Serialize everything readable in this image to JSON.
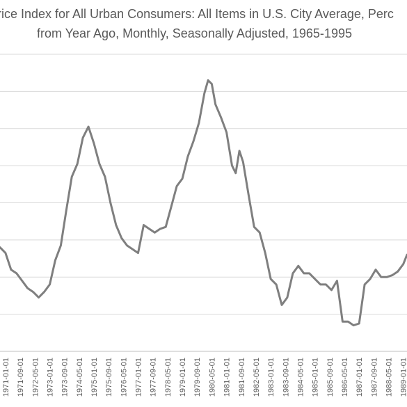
{
  "title": {
    "line1": "rice Index for All Urban Consumers: All Items in U.S. City Average, Perc",
    "line2": "from Year Ago, Monthly, Seasonally Adjusted, 1965-1995"
  },
  "chart_data": {
    "type": "line",
    "title": "rice Index for All Urban Consumers: All Items in U.S. City Average, Perc from Year Ago, Monthly, Seasonally Adjusted, 1965-1995",
    "xlabel": "",
    "ylabel": "",
    "grid": true,
    "line_color": "#7f7f7f",
    "x_tick_labels": [
      "1971-01-01",
      "1971-09-01",
      "1972-05-01",
      "1973-01-01",
      "1973-09-01",
      "1974-05-01",
      "1975-01-01",
      "1975-09-01",
      "1976-05-01",
      "1977-01-01",
      "1977-09-01",
      "1978-05-01",
      "1979-01-01",
      "1979-09-01",
      "1980-05-01",
      "1981-01-01",
      "1981-09-01",
      "1982-05-01",
      "1983-01-01",
      "1983-09-01",
      "1984-05-01",
      "1985-01-01",
      "1985-09-01",
      "1986-05-01",
      "1987-01-01",
      "1987-09-01",
      "1988-05-01",
      "1989-01-01"
    ],
    "x_range": [
      "1970-10-01",
      "1989-03-01"
    ],
    "ylim": [
      0,
      16
    ],
    "y_grid_step": 2,
    "series": [
      {
        "x": [
          "1970-10-01",
          "1971-01-01",
          "1971-04-01",
          "1971-07-01",
          "1971-10-01",
          "1972-01-01",
          "1972-04-01",
          "1972-07-01",
          "1972-10-01",
          "1973-01-01",
          "1973-04-01",
          "1973-07-01",
          "1973-10-01",
          "1974-01-01",
          "1974-04-01",
          "1974-07-01",
          "1974-10-01",
          "1975-01-01",
          "1975-04-01",
          "1975-07-01",
          "1975-10-01",
          "1976-01-01",
          "1976-04-01",
          "1976-07-01",
          "1976-10-01",
          "1977-01-01",
          "1977-04-01",
          "1977-07-01",
          "1977-10-01",
          "1978-01-01",
          "1978-04-01",
          "1978-07-01",
          "1978-10-01",
          "1979-01-01",
          "1979-04-01",
          "1979-07-01",
          "1979-10-01",
          "1980-01-01",
          "1980-03-01",
          "1980-05-01",
          "1980-07-01",
          "1980-10-01",
          "1981-01-01",
          "1981-04-01",
          "1981-06-01",
          "1981-08-01",
          "1981-10-01",
          "1982-01-01",
          "1982-04-01",
          "1982-07-01",
          "1982-10-01",
          "1983-01-01",
          "1983-04-01",
          "1983-07-01",
          "1983-10-01",
          "1984-01-01",
          "1984-04-01",
          "1984-07-01",
          "1984-10-01",
          "1985-01-01",
          "1985-04-01",
          "1985-07-01",
          "1985-10-01",
          "1986-01-01",
          "1986-04-01",
          "1986-07-01",
          "1986-10-01",
          "1987-01-01",
          "1987-04-01",
          "1987-07-01",
          "1987-10-01",
          "1988-01-01",
          "1988-04-01",
          "1988-07-01",
          "1988-10-01",
          "1989-01-01",
          "1989-03-01"
        ],
        "values": [
          5.6,
          5.3,
          4.4,
          4.2,
          3.8,
          3.4,
          3.2,
          2.9,
          3.2,
          3.6,
          4.9,
          5.7,
          7.6,
          9.4,
          10.1,
          11.5,
          12.1,
          11.2,
          10.1,
          9.4,
          8.0,
          6.8,
          6.1,
          5.7,
          5.5,
          5.3,
          6.8,
          6.6,
          6.4,
          6.6,
          6.7,
          7.8,
          8.9,
          9.3,
          10.5,
          11.3,
          12.3,
          13.9,
          14.6,
          14.4,
          13.3,
          12.6,
          11.8,
          10.0,
          9.6,
          10.8,
          10.2,
          8.4,
          6.7,
          6.4,
          5.3,
          3.9,
          3.6,
          2.5,
          2.9,
          4.2,
          4.6,
          4.2,
          4.2,
          3.9,
          3.6,
          3.6,
          3.3,
          3.8,
          1.6,
          1.6,
          1.4,
          1.5,
          3.6,
          3.9,
          4.4,
          4.0,
          4.0,
          4.1,
          4.3,
          4.7,
          5.2
        ]
      }
    ]
  }
}
